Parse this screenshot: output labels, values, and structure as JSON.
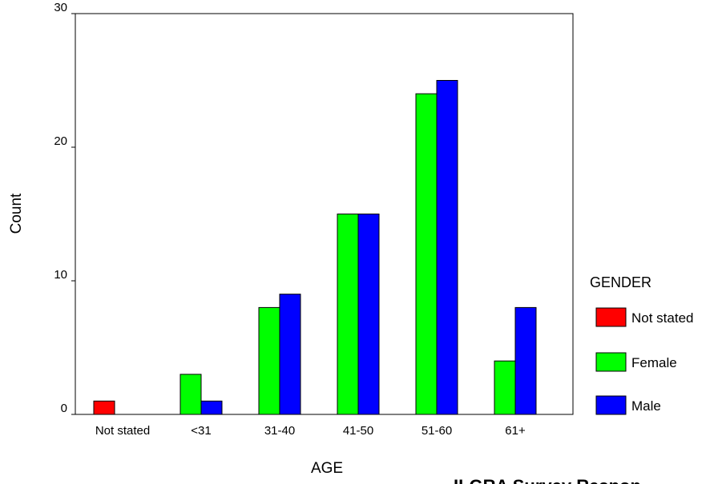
{
  "chart_data": {
    "type": "bar",
    "title": "",
    "xlabel": "AGE",
    "ylabel": "Count",
    "categories": [
      "Not stated",
      "<31",
      "31-40",
      "41-50",
      "51-60",
      "61+"
    ],
    "series": [
      {
        "name": "Not stated",
        "color": "#ff0000",
        "values": [
          1,
          0,
          0,
          0,
          0,
          0
        ]
      },
      {
        "name": "Female",
        "color": "#00ff00",
        "values": [
          0,
          3,
          8,
          15,
          24,
          4
        ]
      },
      {
        "name": "Male",
        "color": "#0000ff",
        "values": [
          0,
          1,
          9,
          15,
          25,
          8
        ]
      }
    ],
    "ylim": [
      0,
      30
    ],
    "yticks": [
      0,
      10,
      20,
      30
    ],
    "grid": false,
    "legend": {
      "title": "GENDER",
      "placement": "right"
    }
  },
  "footer": {
    "text": "ILGRA Survey Respon"
  }
}
